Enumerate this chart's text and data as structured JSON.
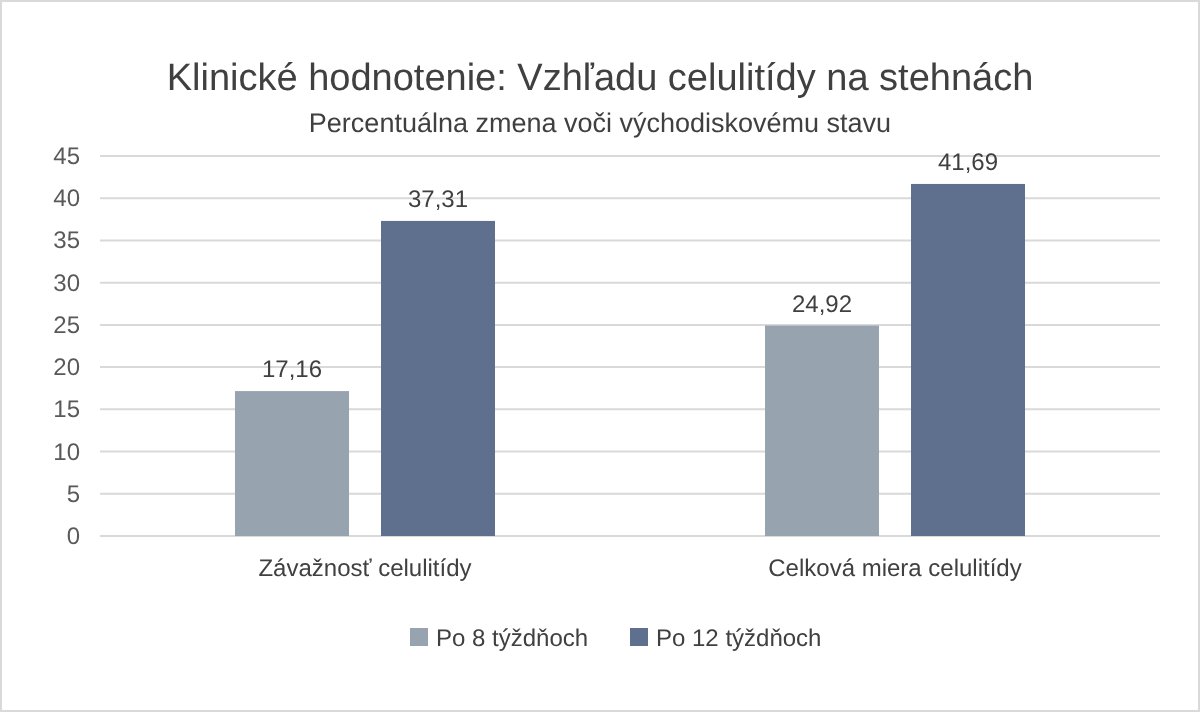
{
  "chart_data": {
    "type": "bar",
    "title": "Klinické hodnotenie: Vzhľadu celulitídy na stehnách",
    "subtitle": "Percentuálna zmena voči východiskovému stavu",
    "categories": [
      "Závažnosť celulitídy",
      "Celková miera celulitídy"
    ],
    "series": [
      {
        "name": "Po 8 týždňoch",
        "color": "#97a3ae",
        "values": [
          17.16,
          24.92
        ],
        "value_labels": [
          "17,16",
          "24,92"
        ]
      },
      {
        "name": "Po 12 týždňoch",
        "color": "#5f6f8e",
        "values": [
          37.31,
          41.69
        ],
        "value_labels": [
          "37,31",
          "41,69"
        ]
      }
    ],
    "ylim": [
      0,
      45
    ],
    "yticks": [
      0,
      5,
      10,
      15,
      20,
      25,
      30,
      35,
      40,
      45
    ],
    "grid": "y",
    "legend": "bottom"
  }
}
